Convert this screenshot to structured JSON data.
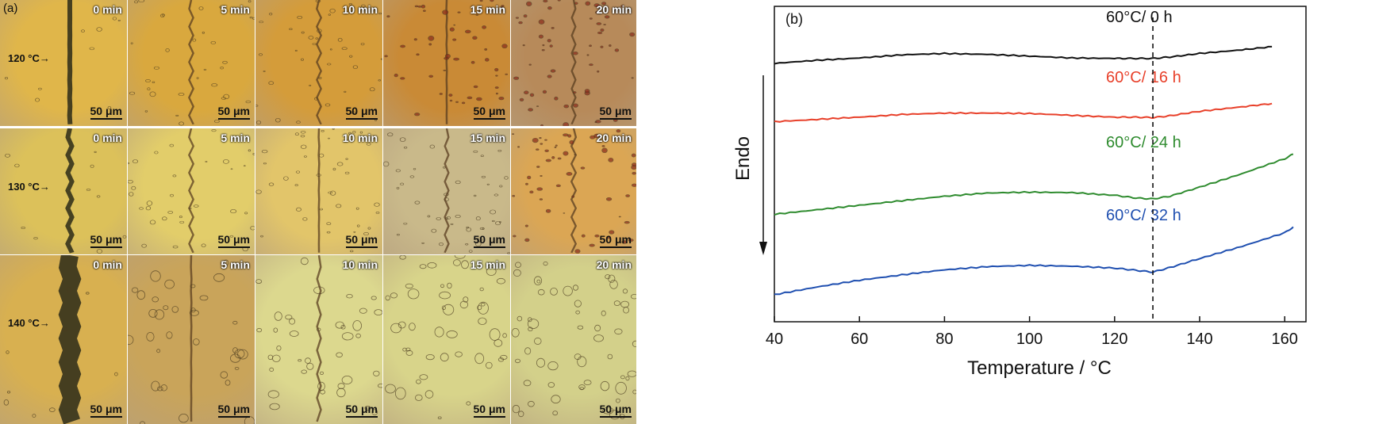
{
  "panel_a": {
    "label": "(a)",
    "scale_label": "50 μm",
    "times": [
      "0 min",
      "5 min",
      "10 min",
      "15 min",
      "20 min"
    ],
    "rows": [
      {
        "temperature": "120 °C",
        "palette": [
          "#e0b64a",
          "#d9a83e",
          "#d49c3a",
          "#c98a36",
          "#b78a5a"
        ]
      },
      {
        "temperature": "130 °C",
        "palette": [
          "#dcc15a",
          "#e2cd6a",
          "#e2c56a",
          "#c9b98a",
          "#dba654"
        ]
      },
      {
        "temperature": "140 °C",
        "palette": [
          "#d8b050",
          "#c9a45a",
          "#dcd88e",
          "#d8d48a",
          "#d3d08a"
        ]
      }
    ]
  },
  "chart_data": {
    "type": "line",
    "label": "(b)",
    "xlabel": "Temperature / °C",
    "ylabel": "Endo",
    "xlim": [
      40,
      165
    ],
    "xticks": [
      40,
      60,
      80,
      100,
      120,
      140,
      160
    ],
    "vline_x": 129,
    "colors": {
      "black": "#111111",
      "red": "#e8402a",
      "green": "#2e8b2e",
      "blue": "#1f4fb0"
    },
    "series": [
      {
        "name": "60°C/ 0 h",
        "color": "#111111",
        "x": [
          40,
          50,
          60,
          70,
          80,
          90,
          100,
          110,
          120,
          125,
          129,
          133,
          140,
          150,
          157
        ],
        "y": [
          0.0,
          0.07,
          0.12,
          0.19,
          0.22,
          0.2,
          0.16,
          0.12,
          0.11,
          0.11,
          0.11,
          0.14,
          0.22,
          0.3,
          0.37
        ]
      },
      {
        "name": "60°C/ 16 h",
        "color": "#e8402a",
        "x": [
          40,
          50,
          60,
          70,
          80,
          90,
          100,
          110,
          120,
          125,
          129,
          133,
          140,
          150,
          157
        ],
        "y": [
          -1.29,
          -1.24,
          -1.19,
          -1.13,
          -1.1,
          -1.1,
          -1.11,
          -1.15,
          -1.19,
          -1.19,
          -1.2,
          -1.16,
          -1.06,
          -0.96,
          -0.89
        ]
      },
      {
        "name": "60°C/ 24 h",
        "color": "#2e8b2e",
        "x": [
          40,
          50,
          60,
          70,
          80,
          90,
          100,
          110,
          120,
          125,
          129,
          133,
          140,
          150,
          160,
          162
        ],
        "y": [
          -3.34,
          -3.24,
          -3.14,
          -3.04,
          -2.94,
          -2.87,
          -2.85,
          -2.86,
          -2.92,
          -2.98,
          -3.0,
          -2.94,
          -2.74,
          -2.44,
          -2.11,
          -2.01
        ]
      },
      {
        "name": "60°C/ 32 h",
        "color": "#1f4fb0",
        "x": [
          40,
          50,
          60,
          70,
          80,
          90,
          100,
          110,
          120,
          125,
          129,
          133,
          140,
          150,
          160,
          162
        ],
        "y": [
          -5.12,
          -4.95,
          -4.8,
          -4.68,
          -4.57,
          -4.5,
          -4.47,
          -4.49,
          -4.53,
          -4.58,
          -4.62,
          -4.52,
          -4.32,
          -4.05,
          -3.75,
          -3.62
        ]
      }
    ]
  }
}
